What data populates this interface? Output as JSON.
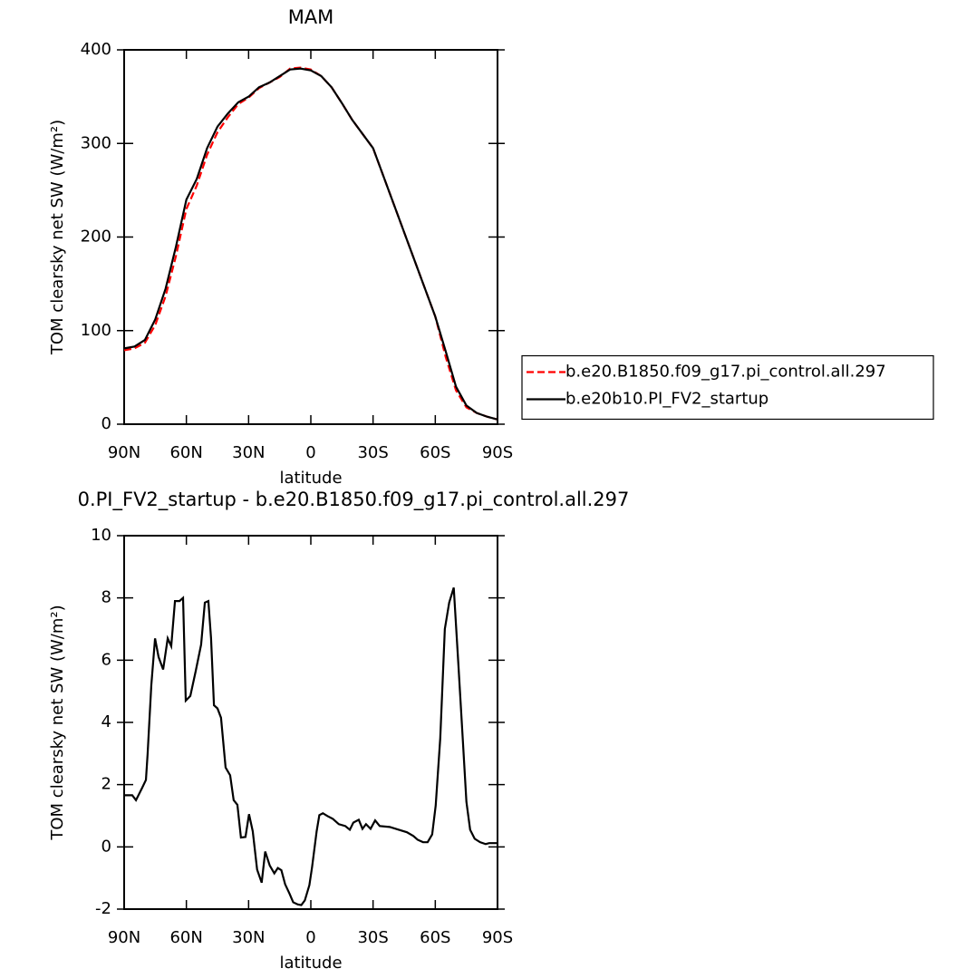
{
  "chart_data": [
    {
      "type": "line",
      "title": "MAM",
      "x_label": "latitude",
      "y_label": "TOM clearsky net SW (W/m²)",
      "x": [
        90,
        85,
        80,
        75,
        70,
        65,
        60,
        55,
        50,
        45,
        40,
        35,
        30,
        25,
        20,
        15,
        10,
        5,
        0,
        -5,
        -10,
        -15,
        -20,
        -25,
        -30,
        -35,
        -40,
        -45,
        -50,
        -55,
        -60,
        -65,
        -70,
        -75,
        -80,
        -85,
        -90
      ],
      "series": [
        {
          "name": "b.e20.B1850.f09_g17.pi_control.all.297",
          "color": "#ff0000",
          "dashed": true,
          "values": [
            79,
            81,
            87,
            106,
            137,
            180,
            230,
            255,
            288,
            312,
            328,
            342,
            349,
            359,
            365,
            371,
            380,
            381,
            379,
            372,
            360,
            343,
            325,
            310,
            295,
            265,
            235,
            205,
            175,
            145,
            115,
            72,
            36,
            18,
            12,
            8,
            5
          ]
        },
        {
          "name": "b.e20b10.PI_FV2_startup",
          "color": "#000000",
          "dashed": false,
          "values": [
            81,
            83,
            90,
            112,
            145,
            190,
            240,
            262,
            295,
            318,
            332,
            344,
            350,
            360,
            365,
            372,
            379,
            380,
            378,
            372,
            360,
            343,
            325,
            310,
            295,
            265,
            235,
            205,
            175,
            145,
            115,
            78,
            40,
            20,
            12,
            8,
            5
          ]
        }
      ],
      "xlim": [
        90,
        -90
      ],
      "xticks": [
        {
          "value": 90,
          "label": "90N"
        },
        {
          "value": 60,
          "label": "60N"
        },
        {
          "value": 30,
          "label": "30N"
        },
        0,
        {
          "value": -30,
          "label": "30S"
        },
        {
          "value": -60,
          "label": "60S"
        },
        {
          "value": -90,
          "label": "90S"
        }
      ],
      "ylim": [
        0,
        400
      ],
      "yticks": [
        0,
        100,
        200,
        300,
        400
      ],
      "legend": "right"
    },
    {
      "type": "line",
      "title": "0.PI_FV2_startup - b.e20.B1850.f09_g17.pi_control.all.297",
      "x_label": "latitude",
      "y_label": "TOM clearsky net SW (W/m²)",
      "x": [
        90,
        86.1,
        84.3,
        81.3,
        79.5,
        78.7,
        76.9,
        75.1,
        73.4,
        71.2,
        69.0,
        67.3,
        65.5,
        63.3,
        61.6,
        60.3,
        58.1,
        55.5,
        52.9,
        51.1,
        49.4,
        48.1,
        46.7,
        45.0,
        43.3,
        41.1,
        38.9,
        37.2,
        35.4,
        33.7,
        31.5,
        29.8,
        28.0,
        25.9,
        23.7,
        22.0,
        19.8,
        17.6,
        15.9,
        14.2,
        12.4,
        10.3,
        8.5,
        6.3,
        4.6,
        2.9,
        0.7,
        -0.6,
        -2.8,
        -4.1,
        -5.8,
        -8.0,
        -10.6,
        -13.5,
        -16.6,
        -18.8,
        -20.5,
        -23.1,
        -24.9,
        -26.6,
        -28.8,
        -31.0,
        -33.2,
        -38.0,
        -42.4,
        -46.3,
        -49.4,
        -51.5,
        -54.1,
        -56.3,
        -58.5,
        -60.2,
        -62.4,
        -64.6,
        -66.7,
        -68.9,
        -71.1,
        -73.3,
        -75.0,
        -76.8,
        -79.0,
        -81.6,
        -84.3,
        -86.0,
        -90
      ],
      "series": [
        {
          "color": "#000000",
          "dashed": false,
          "values": [
            1.66,
            1.66,
            1.5,
            1.9,
            2.15,
            2.97,
            5.2,
            6.7,
            6.1,
            5.7,
            6.7,
            6.45,
            7.9,
            7.9,
            8.0,
            4.7,
            4.85,
            5.65,
            6.5,
            7.85,
            7.9,
            6.7,
            4.55,
            4.45,
            4.15,
            2.55,
            2.3,
            1.5,
            1.35,
            0.3,
            0.32,
            1.05,
            0.5,
            -0.73,
            -1.15,
            -0.15,
            -0.6,
            -0.85,
            -0.68,
            -0.75,
            -1.2,
            -1.5,
            -1.78,
            -1.85,
            -1.87,
            -1.72,
            -1.23,
            -0.65,
            0.5,
            1.02,
            1.08,
            0.99,
            0.9,
            0.73,
            0.67,
            0.55,
            0.78,
            0.87,
            0.58,
            0.73,
            0.58,
            0.85,
            0.67,
            0.64,
            0.55,
            0.47,
            0.35,
            0.23,
            0.15,
            0.15,
            0.4,
            1.33,
            3.5,
            7.0,
            7.85,
            8.33,
            5.9,
            3.4,
            1.45,
            0.55,
            0.26,
            0.15,
            0.09,
            0.12,
            0.12
          ]
        }
      ],
      "xlim": [
        90,
        -90
      ],
      "xticks": [
        {
          "value": 90,
          "label": "90N"
        },
        {
          "value": 60,
          "label": "60N"
        },
        {
          "value": 30,
          "label": "30N"
        },
        0,
        {
          "value": -30,
          "label": "30S"
        },
        {
          "value": -60,
          "label": "60S"
        },
        {
          "value": -90,
          "label": "90S"
        }
      ],
      "ylim": [
        -2,
        10
      ],
      "yticks": [
        -2,
        0,
        2,
        4,
        6,
        8,
        10
      ]
    }
  ]
}
